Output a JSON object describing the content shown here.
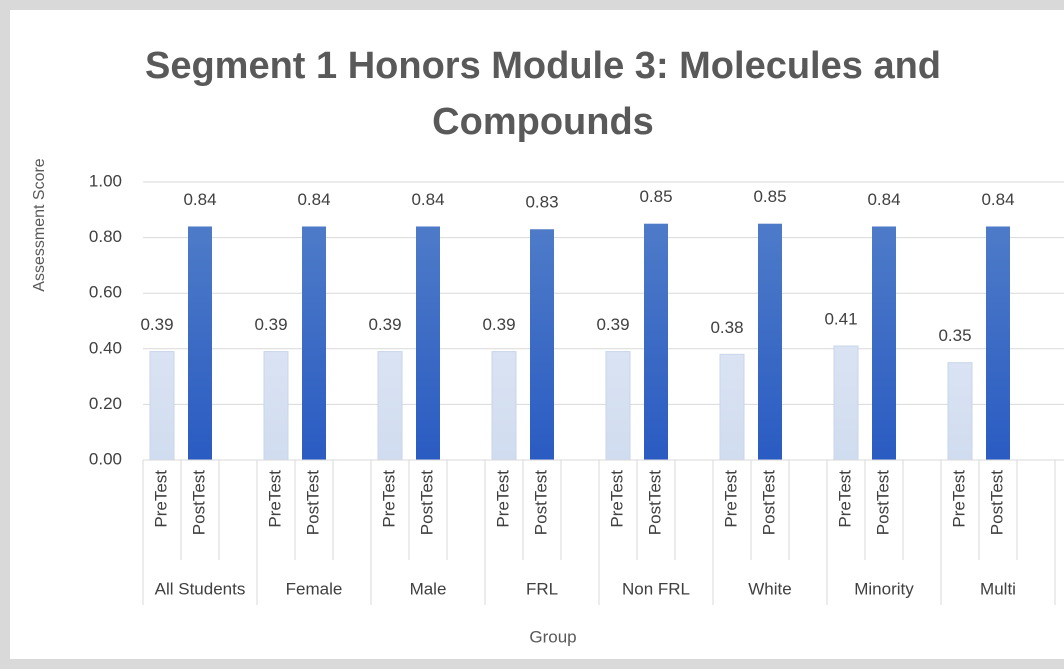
{
  "chart_data": {
    "type": "bar",
    "title": "Segment 1 Honors Module 3: Molecules and Compounds",
    "x_label": "Group",
    "y_label": "Assessment Score",
    "categories": [
      "All Students",
      "Female",
      "Male",
      "FRL",
      "Non FRL",
      "White",
      "Minority",
      "Multi"
    ],
    "series": [
      {
        "name": "PreTest",
        "color": "#dae3f3",
        "values": [
          0.39,
          0.39,
          0.39,
          0.39,
          0.39,
          0.38,
          0.41,
          0.35
        ]
      },
      {
        "name": "PostTest",
        "color": "#4472c4",
        "values": [
          0.84,
          0.84,
          0.84,
          0.83,
          0.85,
          0.85,
          0.84,
          0.84
        ]
      }
    ],
    "ylim": [
      0,
      1
    ],
    "yticks": [
      {
        "value": 0,
        "label": "0.00"
      },
      {
        "value": 0.2,
        "label": "0.20"
      },
      {
        "value": 0.4,
        "label": "0.40"
      },
      {
        "value": 0.6,
        "label": "0.60"
      },
      {
        "value": 0.8,
        "label": "0.80"
      },
      {
        "value": 1,
        "label": "1.00"
      }
    ],
    "grid": true
  }
}
